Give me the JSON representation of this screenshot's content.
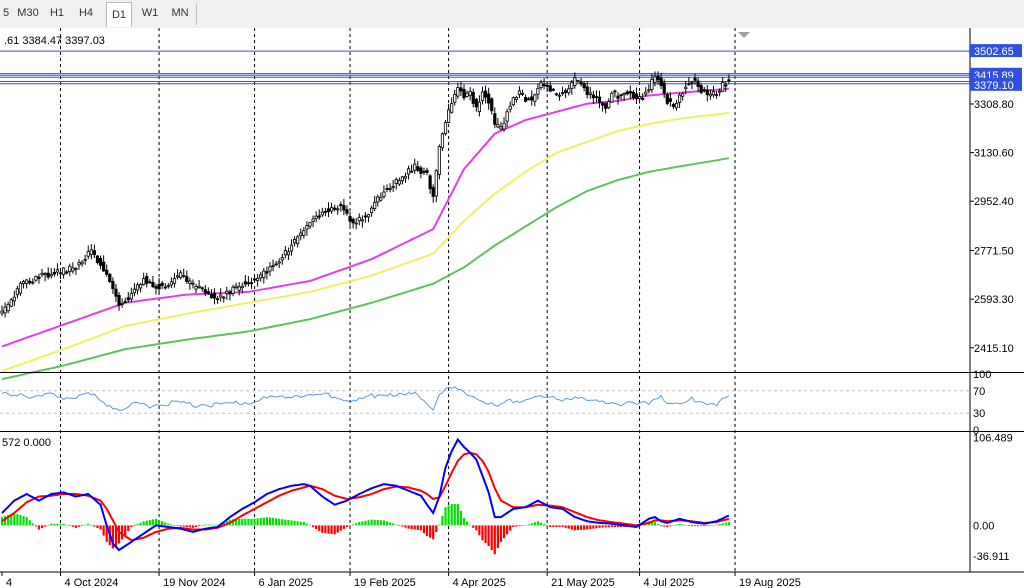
{
  "toolbar": {
    "timeframes": [
      "5",
      "M30",
      "H1",
      "H4",
      "D1",
      "W1",
      "MN"
    ],
    "active": "D1"
  },
  "colors": {
    "background": "#ffffff",
    "bull_candle": "#000000",
    "bear_candle": "#000000",
    "ma_fast": "#e040e0",
    "ma_mid": "#f0f060",
    "ma_slow": "#60c060",
    "rsi": "#5b9bd5",
    "macd": "#0000ff",
    "signal": "#ff0000",
    "hist_pos": "#00e000",
    "hist_neg": "#ff0000",
    "hline": "#3050e0",
    "grid_v": "#000000"
  },
  "chart_data": [
    {
      "type": "candlestick",
      "panel": "price",
      "header": ".61 3384.47 3397.03",
      "ylim": [
        2330,
        3580
      ],
      "yticks": [
        3308.8,
        3130.6,
        2952.4,
        2771.5,
        2593.3,
        2415.1
      ],
      "price_labels": [
        {
          "value": 3502.65,
          "text": "3502.65"
        },
        {
          "value": 3415.89,
          "text": "3415.89"
        },
        {
          "value": 3379.1,
          "text": "3379.10"
        }
      ],
      "horizontal_lines": [
        3502.65,
        3420.0,
        3414.0,
        3407.0,
        3391.0,
        3383.0
      ],
      "xticks": [
        {
          "bar": 0,
          "label": "4"
        },
        {
          "bar": 19,
          "label": "4 Oct 2024"
        },
        {
          "bar": 51,
          "label": "19 Nov 2024"
        },
        {
          "bar": 82,
          "label": "6 Jan 2025"
        },
        {
          "bar": 113,
          "label": "19 Feb 2025"
        },
        {
          "bar": 145,
          "label": "4 Apr 2025"
        },
        {
          "bar": 177,
          "label": "21 May 2025"
        },
        {
          "bar": 207,
          "label": "4 Jul 2025"
        },
        {
          "bar": 238,
          "label": "19 Aug 2025"
        }
      ],
      "close_anchors": [
        [
          0,
          2540
        ],
        [
          6,
          2640
        ],
        [
          12,
          2680
        ],
        [
          18,
          2690
        ],
        [
          24,
          2710
        ],
        [
          29,
          2770
        ],
        [
          34,
          2690
        ],
        [
          38,
          2570
        ],
        [
          42,
          2610
        ],
        [
          46,
          2670
        ],
        [
          50,
          2640
        ],
        [
          54,
          2650
        ],
        [
          58,
          2680
        ],
        [
          62,
          2640
        ],
        [
          66,
          2620
        ],
        [
          70,
          2600
        ],
        [
          74,
          2620
        ],
        [
          78,
          2650
        ],
        [
          82,
          2660
        ],
        [
          86,
          2700
        ],
        [
          90,
          2740
        ],
        [
          94,
          2790
        ],
        [
          98,
          2850
        ],
        [
          102,
          2900
        ],
        [
          106,
          2920
        ],
        [
          110,
          2940
        ],
        [
          114,
          2870
        ],
        [
          118,
          2900
        ],
        [
          122,
          2960
        ],
        [
          126,
          3010
        ],
        [
          130,
          3040
        ],
        [
          134,
          3080
        ],
        [
          138,
          3050
        ],
        [
          140,
          2970
        ],
        [
          142,
          3150
        ],
        [
          144,
          3240
        ],
        [
          146,
          3320
        ],
        [
          148,
          3370
        ],
        [
          150,
          3340
        ],
        [
          152,
          3350
        ],
        [
          154,
          3290
        ],
        [
          156,
          3360
        ],
        [
          158,
          3320
        ],
        [
          160,
          3230
        ],
        [
          162,
          3220
        ],
        [
          164,
          3280
        ],
        [
          166,
          3330
        ],
        [
          168,
          3350
        ],
        [
          170,
          3330
        ],
        [
          172,
          3320
        ],
        [
          174,
          3370
        ],
        [
          176,
          3380
        ],
        [
          178,
          3360
        ],
        [
          180,
          3340
        ],
        [
          182,
          3350
        ],
        [
          184,
          3370
        ],
        [
          186,
          3400
        ],
        [
          188,
          3390
        ],
        [
          190,
          3350
        ],
        [
          192,
          3330
        ],
        [
          194,
          3320
        ],
        [
          196,
          3300
        ],
        [
          198,
          3350
        ],
        [
          200,
          3340
        ],
        [
          202,
          3350
        ],
        [
          204,
          3360
        ],
        [
          206,
          3320
        ],
        [
          208,
          3340
        ],
        [
          210,
          3360
        ],
        [
          212,
          3420
        ],
        [
          214,
          3380
        ],
        [
          216,
          3320
        ],
        [
          218,
          3300
        ],
        [
          220,
          3330
        ],
        [
          222,
          3380
        ],
        [
          224,
          3400
        ],
        [
          226,
          3370
        ],
        [
          228,
          3350
        ],
        [
          230,
          3340
        ],
        [
          232,
          3350
        ],
        [
          234,
          3380
        ],
        [
          236,
          3397
        ]
      ],
      "ma_fast_anchors": [
        [
          0,
          2420
        ],
        [
          20,
          2500
        ],
        [
          40,
          2580
        ],
        [
          60,
          2610
        ],
        [
          80,
          2620
        ],
        [
          100,
          2660
        ],
        [
          120,
          2740
        ],
        [
          140,
          2850
        ],
        [
          150,
          3070
        ],
        [
          160,
          3200
        ],
        [
          170,
          3250
        ],
        [
          180,
          3280
        ],
        [
          190,
          3310
        ],
        [
          200,
          3320
        ],
        [
          210,
          3340
        ],
        [
          220,
          3350
        ],
        [
          236,
          3365
        ]
      ],
      "ma_mid_anchors": [
        [
          0,
          2330
        ],
        [
          20,
          2410
        ],
        [
          40,
          2495
        ],
        [
          60,
          2540
        ],
        [
          80,
          2580
        ],
        [
          100,
          2620
        ],
        [
          120,
          2680
        ],
        [
          140,
          2760
        ],
        [
          150,
          2880
        ],
        [
          160,
          2980
        ],
        [
          170,
          3060
        ],
        [
          180,
          3130
        ],
        [
          190,
          3170
        ],
        [
          200,
          3210
        ],
        [
          210,
          3235
        ],
        [
          220,
          3255
        ],
        [
          236,
          3276
        ]
      ],
      "ma_slow_anchors": [
        [
          0,
          2300
        ],
        [
          20,
          2350
        ],
        [
          40,
          2410
        ],
        [
          60,
          2445
        ],
        [
          80,
          2475
        ],
        [
          100,
          2520
        ],
        [
          120,
          2580
        ],
        [
          140,
          2650
        ],
        [
          150,
          2710
        ],
        [
          160,
          2790
        ],
        [
          170,
          2860
        ],
        [
          180,
          2930
        ],
        [
          190,
          2990
        ],
        [
          200,
          3030
        ],
        [
          210,
          3060
        ],
        [
          220,
          3080
        ],
        [
          236,
          3110
        ]
      ]
    },
    {
      "type": "line",
      "panel": "rsi",
      "ylim": [
        0,
        100
      ],
      "yticks": [
        100,
        70,
        30,
        0
      ],
      "levels": [
        70,
        30
      ],
      "anchors": [
        [
          0,
          62
        ],
        [
          6,
          66
        ],
        [
          10,
          58
        ],
        [
          16,
          62
        ],
        [
          22,
          58
        ],
        [
          28,
          64
        ],
        [
          32,
          55
        ],
        [
          36,
          40
        ],
        [
          40,
          38
        ],
        [
          44,
          47
        ],
        [
          48,
          44
        ],
        [
          52,
          48
        ],
        [
          58,
          47
        ],
        [
          62,
          44
        ],
        [
          66,
          47
        ],
        [
          70,
          44
        ],
        [
          76,
          47
        ],
        [
          82,
          52
        ],
        [
          88,
          58
        ],
        [
          94,
          62
        ],
        [
          100,
          60
        ],
        [
          106,
          64
        ],
        [
          110,
          58
        ],
        [
          114,
          49
        ],
        [
          118,
          58
        ],
        [
          122,
          63
        ],
        [
          126,
          66
        ],
        [
          130,
          61
        ],
        [
          134,
          64
        ],
        [
          138,
          50
        ],
        [
          140,
          40
        ],
        [
          142,
          64
        ],
        [
          145,
          75
        ],
        [
          148,
          71
        ],
        [
          150,
          64
        ],
        [
          154,
          60
        ],
        [
          158,
          48
        ],
        [
          160,
          40
        ],
        [
          164,
          50
        ],
        [
          170,
          56
        ],
        [
          174,
          60
        ],
        [
          180,
          54
        ],
        [
          186,
          60
        ],
        [
          190,
          52
        ],
        [
          194,
          48
        ],
        [
          198,
          51
        ],
        [
          202,
          47
        ],
        [
          206,
          45
        ],
        [
          210,
          50
        ],
        [
          214,
          62
        ],
        [
          216,
          50
        ],
        [
          220,
          43
        ],
        [
          224,
          54
        ],
        [
          228,
          50
        ],
        [
          232,
          48
        ],
        [
          236,
          57
        ]
      ]
    },
    {
      "type": "line",
      "panel": "macd",
      "header": "572 0.000",
      "ylim": [
        -42,
        112
      ],
      "yticks": [
        106.489,
        0.0,
        -36.911
      ],
      "tick_labels": [
        "106.489",
        "0.00",
        "-36.911"
      ],
      "macd_anchors": [
        [
          0,
          15
        ],
        [
          4,
          30
        ],
        [
          8,
          38
        ],
        [
          12,
          30
        ],
        [
          16,
          38
        ],
        [
          20,
          40
        ],
        [
          24,
          35
        ],
        [
          28,
          38
        ],
        [
          32,
          25
        ],
        [
          34,
          0
        ],
        [
          36,
          -22
        ],
        [
          38,
          -30
        ],
        [
          42,
          -20
        ],
        [
          46,
          -10
        ],
        [
          50,
          0
        ],
        [
          54,
          -2
        ],
        [
          58,
          -4
        ],
        [
          62,
          -8
        ],
        [
          66,
          -4
        ],
        [
          70,
          -2
        ],
        [
          74,
          10
        ],
        [
          78,
          20
        ],
        [
          82,
          28
        ],
        [
          86,
          38
        ],
        [
          90,
          44
        ],
        [
          94,
          48
        ],
        [
          98,
          50
        ],
        [
          100,
          48
        ],
        [
          104,
          35
        ],
        [
          108,
          25
        ],
        [
          112,
          30
        ],
        [
          116,
          38
        ],
        [
          120,
          45
        ],
        [
          124,
          50
        ],
        [
          128,
          48
        ],
        [
          132,
          42
        ],
        [
          136,
          36
        ],
        [
          138,
          25
        ],
        [
          140,
          15
        ],
        [
          142,
          35
        ],
        [
          144,
          70
        ],
        [
          146,
          90
        ],
        [
          148,
          104
        ],
        [
          150,
          95
        ],
        [
          152,
          88
        ],
        [
          154,
          80
        ],
        [
          156,
          60
        ],
        [
          158,
          40
        ],
        [
          160,
          10
        ],
        [
          162,
          10
        ],
        [
          166,
          20
        ],
        [
          170,
          22
        ],
        [
          174,
          30
        ],
        [
          178,
          22
        ],
        [
          182,
          20
        ],
        [
          186,
          10
        ],
        [
          190,
          5
        ],
        [
          194,
          3
        ],
        [
          198,
          2
        ],
        [
          202,
          0
        ],
        [
          206,
          -2
        ],
        [
          210,
          8
        ],
        [
          212,
          10
        ],
        [
          214,
          5
        ],
        [
          216,
          3
        ],
        [
          220,
          8
        ],
        [
          224,
          4
        ],
        [
          228,
          2
        ],
        [
          232,
          5
        ],
        [
          236,
          12
        ]
      ],
      "signal_anchors": [
        [
          0,
          5
        ],
        [
          4,
          15
        ],
        [
          8,
          28
        ],
        [
          12,
          35
        ],
        [
          16,
          36
        ],
        [
          20,
          38
        ],
        [
          24,
          38
        ],
        [
          28,
          36
        ],
        [
          32,
          30
        ],
        [
          34,
          20
        ],
        [
          36,
          6
        ],
        [
          38,
          -8
        ],
        [
          42,
          -18
        ],
        [
          46,
          -15
        ],
        [
          50,
          -8
        ],
        [
          54,
          -4
        ],
        [
          58,
          -3
        ],
        [
          62,
          -5
        ],
        [
          66,
          -5
        ],
        [
          70,
          -3
        ],
        [
          74,
          3
        ],
        [
          78,
          12
        ],
        [
          82,
          20
        ],
        [
          86,
          28
        ],
        [
          90,
          36
        ],
        [
          94,
          42
        ],
        [
          98,
          46
        ],
        [
          100,
          48
        ],
        [
          104,
          44
        ],
        [
          108,
          36
        ],
        [
          112,
          32
        ],
        [
          116,
          34
        ],
        [
          120,
          38
        ],
        [
          124,
          44
        ],
        [
          128,
          47
        ],
        [
          132,
          46
        ],
        [
          136,
          42
        ],
        [
          138,
          38
        ],
        [
          140,
          32
        ],
        [
          142,
          34
        ],
        [
          144,
          48
        ],
        [
          146,
          64
        ],
        [
          148,
          78
        ],
        [
          150,
          86
        ],
        [
          152,
          88
        ],
        [
          154,
          86
        ],
        [
          156,
          78
        ],
        [
          158,
          65
        ],
        [
          160,
          45
        ],
        [
          162,
          30
        ],
        [
          166,
          22
        ],
        [
          170,
          22
        ],
        [
          174,
          25
        ],
        [
          178,
          24
        ],
        [
          182,
          22
        ],
        [
          186,
          16
        ],
        [
          190,
          10
        ],
        [
          194,
          6
        ],
        [
          198,
          4
        ],
        [
          202,
          2
        ],
        [
          206,
          0
        ],
        [
          210,
          3
        ],
        [
          212,
          6
        ],
        [
          214,
          6
        ],
        [
          216,
          5
        ],
        [
          220,
          6
        ],
        [
          224,
          5
        ],
        [
          228,
          3
        ],
        [
          232,
          4
        ],
        [
          236,
          8
        ]
      ]
    }
  ]
}
